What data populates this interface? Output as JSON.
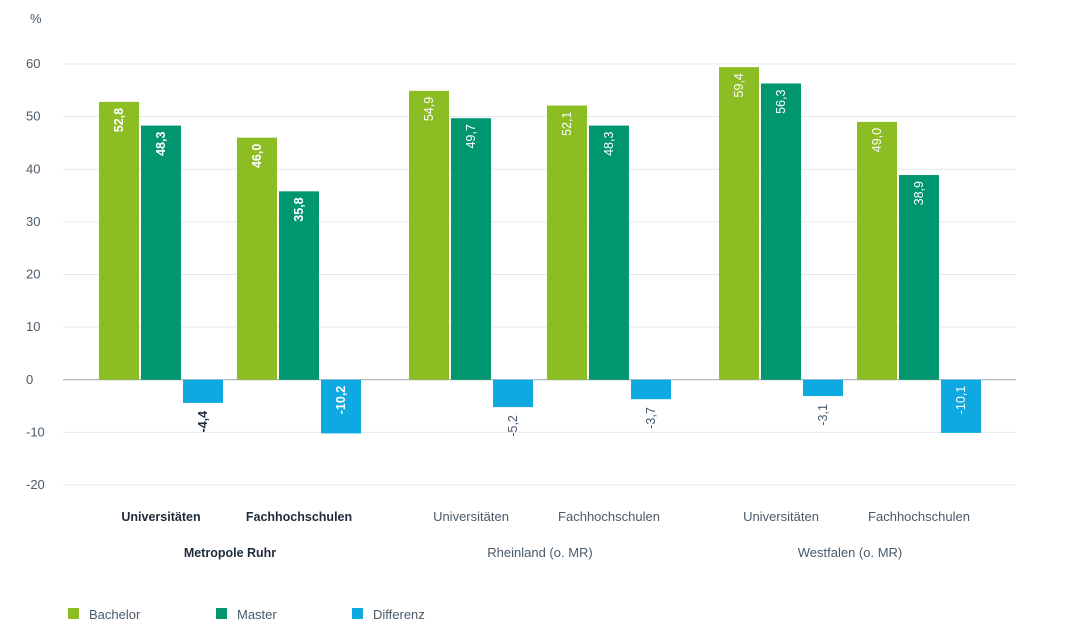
{
  "chart_data": {
    "type": "bar",
    "ylabel": "%",
    "ylim": [
      -20,
      60
    ],
    "yticks": [
      -20,
      -10,
      0,
      10,
      20,
      30,
      40,
      50,
      60
    ],
    "grid": true,
    "legend_position": "bottom-left",
    "colors": {
      "Bachelor": "#8cbd22",
      "Master": "#009670",
      "Differenz": "#0ea9e0"
    },
    "groups": [
      {
        "region": "Metropole Ruhr",
        "bold": true,
        "categories": [
          {
            "label": "Universitäten",
            "values": {
              "Bachelor": 52.8,
              "Master": 48.3,
              "Differenz": -4.4
            },
            "display": {
              "Bachelor": "52,8",
              "Master": "48,3",
              "Differenz": "-4,4"
            }
          },
          {
            "label": "Fachhochschulen",
            "values": {
              "Bachelor": 46.0,
              "Master": 35.8,
              "Differenz": -10.2
            },
            "display": {
              "Bachelor": "46,0",
              "Master": "35,8",
              "Differenz": "-10,2"
            }
          }
        ]
      },
      {
        "region": "Rheinland (o. MR)",
        "bold": false,
        "categories": [
          {
            "label": "Universitäten",
            "values": {
              "Bachelor": 54.9,
              "Master": 49.7,
              "Differenz": -5.2
            },
            "display": {
              "Bachelor": "54,9",
              "Master": "49,7",
              "Differenz": "-5,2"
            }
          },
          {
            "label": "Fachhochschulen",
            "values": {
              "Bachelor": 52.1,
              "Master": 48.3,
              "Differenz": -3.7
            },
            "display": {
              "Bachelor": "52,1",
              "Master": "48,3",
              "Differenz": "-3,7"
            }
          }
        ]
      },
      {
        "region": "Westfalen (o. MR)",
        "bold": false,
        "categories": [
          {
            "label": "Universitäten",
            "values": {
              "Bachelor": 59.4,
              "Master": 56.3,
              "Differenz": -3.1
            },
            "display": {
              "Bachelor": "59,4",
              "Master": "56,3",
              "Differenz": "-3,1"
            }
          },
          {
            "label": "Fachhochschulen",
            "values": {
              "Bachelor": 49.0,
              "Master": 38.9,
              "Differenz": -10.1
            },
            "display": {
              "Bachelor": "49,0",
              "Master": "38,9",
              "Differenz": "-10,1"
            }
          }
        ]
      }
    ],
    "series": [
      {
        "name": "Bachelor"
      },
      {
        "name": "Master"
      },
      {
        "name": "Differenz"
      }
    ]
  }
}
